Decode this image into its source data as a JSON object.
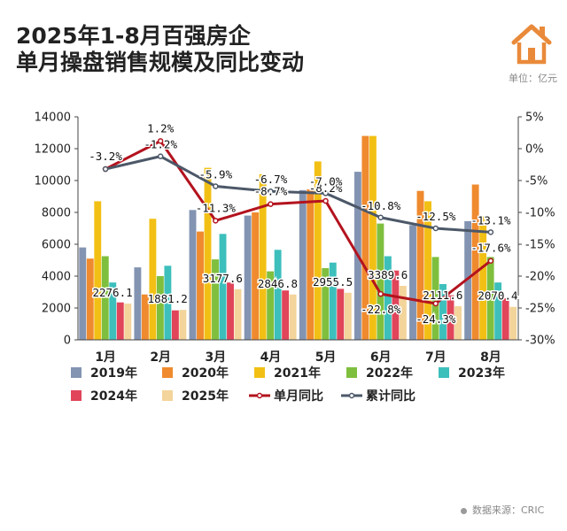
{
  "header": {
    "title_line1": "2025年1-8月百强房企",
    "title_line2": "单月操盘销售规模及同比变动",
    "unit": "单位：亿元",
    "icon": "house-icon"
  },
  "footer": {
    "source": "数据来源：CRIC"
  },
  "colors": {
    "2019年": "#8394b2",
    "2020年": "#ef8a2e",
    "2021年": "#f2c015",
    "2022年": "#7fbf3e",
    "2023年": "#3dbfbc",
    "2024年": "#e0455a",
    "2025年": "#f3d49a",
    "单月同比": "#b3131e",
    "累计同比": "#4c5868",
    "brand": "#e98a3a"
  },
  "chart_data": {
    "type": "bar",
    "categories": [
      "1月",
      "2月",
      "3月",
      "4月",
      "5月",
      "6月",
      "7月",
      "8月"
    ],
    "series": [
      {
        "name": "2019年",
        "values": [
          5800,
          4550,
          8150,
          7800,
          9400,
          10550,
          7200,
          7450
        ]
      },
      {
        "name": "2020年",
        "values": [
          5100,
          2850,
          6800,
          8000,
          9450,
          12800,
          9350,
          9750
        ]
      },
      {
        "name": "2021年",
        "values": [
          8700,
          7600,
          10800,
          10400,
          11200,
          12800,
          8700,
          7750
        ]
      },
      {
        "name": "2022年",
        "values": [
          5250,
          4000,
          5050,
          4300,
          4500,
          7300,
          5200,
          5200
        ]
      },
      {
        "name": "2023年",
        "values": [
          3600,
          4650,
          6650,
          5650,
          4850,
          5250,
          3500,
          3600
        ]
      },
      {
        "name": "2024年",
        "values": [
          2350,
          1850,
          3600,
          3100,
          3200,
          4350,
          2800,
          2600
        ]
      },
      {
        "name": "2025年",
        "values": [
          2276.1,
          1881.2,
          3177.6,
          2846.8,
          2955.5,
          3389.6,
          2111.6,
          2070.4
        ],
        "labels": [
          "2276.1",
          "1881.2",
          "3177.6",
          "2846.8",
          "2955.5",
          "3389.6",
          "2111.6",
          "2070.4"
        ]
      }
    ],
    "lines": [
      {
        "name": "单月同比",
        "values": [
          -3.2,
          1.2,
          -11.3,
          -8.7,
          -8.2,
          -22.8,
          -24.3,
          -17.6
        ],
        "labels": [
          "-3.2%",
          "1.2%",
          "-11.3%",
          "-8.7%",
          "-8.2%",
          "-22.8%",
          "-24.3%",
          "-17.6%"
        ]
      },
      {
        "name": "累计同比",
        "values": [
          -3.2,
          -1.2,
          -5.9,
          -6.7,
          -7.0,
          -10.8,
          -12.5,
          -13.1
        ],
        "labels": [
          "",
          "-1.2%",
          "-5.9%",
          "-6.7%",
          "-7.0%",
          "-10.8%",
          "-12.5%",
          "-13.1%"
        ]
      }
    ],
    "ylim": [
      0,
      14000
    ],
    "yticks": [
      "0",
      "2000",
      "4000",
      "6000",
      "8000",
      "10000",
      "12000",
      "14000"
    ],
    "y2lim": [
      -30,
      5
    ],
    "y2ticks": [
      "5%",
      "0%",
      "-5%",
      "-10%",
      "-15%",
      "-20%",
      "-25%",
      "-30%"
    ],
    "grid": false,
    "legend_position": "bottom",
    "legend": [
      "2019年",
      "2020年",
      "2021年",
      "2022年",
      "2023年",
      "2024年",
      "2025年",
      "单月同比",
      "累计同比"
    ]
  }
}
